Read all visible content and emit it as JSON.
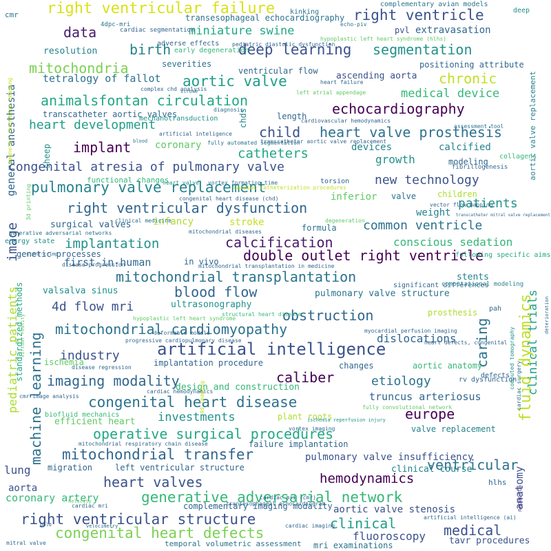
{
  "colors": {
    "background": "#ffffff",
    "palette": [
      "#440154",
      "#3b528b",
      "#21918c",
      "#5ec962",
      "#fde725"
    ]
  },
  "words": [
    {
      "text": "right ventricular failure",
      "color": "#d8e219"
    },
    {
      "text": "right ventricle",
      "color": "#3b528b"
    },
    {
      "text": "data",
      "color": "#481a6c"
    },
    {
      "text": "miniature swine",
      "color": "#22a884"
    },
    {
      "text": "extravasation",
      "color": "#31668e"
    },
    {
      "text": "birth",
      "color": "#26828e"
    },
    {
      "text": "deep learning",
      "color": "#3b528b"
    },
    {
      "text": "segmentation",
      "color": "#21918c"
    },
    {
      "text": "mitochondria",
      "color": "#7ad151"
    },
    {
      "text": "tetralogy of fallot",
      "color": "#2c728e"
    },
    {
      "text": "aortic valve",
      "color": "#1f9e89"
    },
    {
      "text": "chronic",
      "color": "#c2df23"
    },
    {
      "text": "medical device",
      "color": "#35b779"
    },
    {
      "text": "animalsfontan circulation",
      "color": "#22a884"
    },
    {
      "text": "echocardiography",
      "color": "#440154"
    },
    {
      "text": "heart development",
      "color": "#1f9e89"
    },
    {
      "text": "child",
      "color": "#3b528b"
    },
    {
      "text": "heart valve prosthesis",
      "color": "#2c728e"
    },
    {
      "text": "implant",
      "color": "#440154"
    },
    {
      "text": "catheters",
      "color": "#22a884"
    },
    {
      "text": "coronary",
      "color": "#5ec962"
    },
    {
      "text": "devices",
      "color": "#26828e"
    },
    {
      "text": "calcified",
      "color": "#26828e"
    },
    {
      "text": "congenital atresia of pulmonary valve",
      "color": "#3b528b"
    },
    {
      "text": "growth",
      "color": "#21918c"
    },
    {
      "text": "new technology",
      "color": "#3b528b"
    },
    {
      "text": "pulmonary valve replacement",
      "color": "#26828e"
    },
    {
      "text": "patients",
      "color": "#21918c"
    },
    {
      "text": "right ventricular dysfunction",
      "color": "#31668e"
    },
    {
      "text": "infancy",
      "color": "#addc30"
    },
    {
      "text": "stroke",
      "color": "#c2df23"
    },
    {
      "text": "weight",
      "color": "#26828e"
    },
    {
      "text": "common ventricle",
      "color": "#2c728e"
    },
    {
      "text": "implantation",
      "color": "#21918c"
    },
    {
      "text": "calcification",
      "color": "#481a6c"
    },
    {
      "text": "conscious sedation",
      "color": "#35b779"
    },
    {
      "text": "double outlet right ventricle",
      "color": "#440154"
    },
    {
      "text": "first-in-human",
      "color": "#31668e"
    },
    {
      "text": "mitochondrial transplantation",
      "color": "#2c728e"
    },
    {
      "text": "blood flow",
      "color": "#31668e"
    },
    {
      "text": "4d flow mri",
      "color": "#3b528b"
    },
    {
      "text": "obstruction",
      "color": "#31668e"
    },
    {
      "text": "mitochondrial cardiomyopathy",
      "color": "#2c728e"
    },
    {
      "text": "artificial intelligence",
      "color": "#3b528b"
    },
    {
      "text": "imaging modality",
      "color": "#31668e"
    },
    {
      "text": "caliber",
      "color": "#440154"
    },
    {
      "text": "etiology",
      "color": "#2c728e"
    },
    {
      "text": "congenital heart disease",
      "color": "#2c728e"
    },
    {
      "text": "operative surgical procedures",
      "color": "#22a884"
    },
    {
      "text": "mitochondrial transfer",
      "color": "#31668e"
    },
    {
      "text": "ventricular",
      "color": "#2c728e"
    },
    {
      "text": "heart valves",
      "color": "#3b528b"
    },
    {
      "text": "hemodynamics",
      "color": "#440154"
    },
    {
      "text": "generative adversarial network",
      "color": "#35b779"
    },
    {
      "text": "right ventricular structure",
      "color": "#3b528b"
    },
    {
      "text": "congenital heart defects",
      "color": "#7ad151"
    },
    {
      "text": "clinical",
      "color": "#1f9e89"
    },
    {
      "text": "medical",
      "color": "#3b528b"
    },
    {
      "text": "fluoroscopy",
      "color": "#3b528b"
    },
    {
      "text": "aortic valve stenosis",
      "color": "#3b528b"
    },
    {
      "text": "pulmonary valve insufficiency",
      "color": "#3b528b"
    },
    {
      "text": "europe",
      "color": "#440154"
    },
    {
      "text": "truncus arteriosus",
      "color": "#31668e"
    },
    {
      "text": "investments",
      "color": "#21918c"
    },
    {
      "text": "industry",
      "color": "#3b528b"
    },
    {
      "text": "machine learning",
      "color": "#2c728e",
      "vertical": true
    },
    {
      "text": "image",
      "color": "#3b528b",
      "vertical": true
    },
    {
      "text": "caring",
      "color": "#2c728e",
      "vertical": true
    },
    {
      "text": "fluid dynamics",
      "color": "#bddf26",
      "vertical": true
    },
    {
      "text": "clinical trials",
      "color": "#1f9e89",
      "vertical": true
    },
    {
      "text": "pediatric patients",
      "color": "#addc30",
      "vertical": true
    },
    {
      "text": "general anesthesia",
      "color": "#31668e",
      "vertical": true
    },
    {
      "text": "anatomy",
      "color": "#3b528b",
      "vertical": true
    },
    {
      "text": "aortic valve replacement",
      "color": "#26828e",
      "vertical": true
    },
    {
      "text": "sheep",
      "color": "#21918c",
      "vertical": true
    },
    {
      "text": "chds",
      "color": "#26828e",
      "vertical": true
    },
    {
      "text": "standardized methods",
      "color": "#22a884",
      "vertical": true
    },
    {
      "text": "magnetic resonance imaging",
      "color": "#c2df23",
      "vertical": true
    },
    {
      "text": "cardiac surgery",
      "color": "#2c728e",
      "vertical": true
    },
    {
      "text": "computed tomography",
      "color": "#21918c",
      "vertical": true
    },
    {
      "text": "neoaorta",
      "color": "#482878",
      "vertical": true
    },
    {
      "text": "transesophageal echocardiography",
      "color": "#2c728e"
    },
    {
      "text": "complementary avian models",
      "color": "#2c728e"
    },
    {
      "text": "resolution",
      "color": "#26828e"
    },
    {
      "text": "positioning attribute",
      "color": "#31668e"
    },
    {
      "text": "ascending aorta",
      "color": "#3b528b"
    },
    {
      "text": "ventricular flow",
      "color": "#31668e"
    },
    {
      "text": "severities",
      "color": "#2c728e"
    },
    {
      "text": "adverse effects",
      "color": "#31668e"
    },
    {
      "text": "early degeneration",
      "color": "#35b779"
    },
    {
      "text": "transcatheter aortic valves",
      "color": "#31668e"
    },
    {
      "text": "length",
      "color": "#31668e"
    },
    {
      "text": "mechanotransduction",
      "color": "#21918c"
    },
    {
      "text": "functional changes",
      "color": "#35b779"
    },
    {
      "text": "modeling",
      "color": "#31668e"
    },
    {
      "text": "inferior",
      "color": "#5ec962"
    },
    {
      "text": "valve",
      "color": "#2c728e"
    },
    {
      "text": "children",
      "color": "#addc30"
    },
    {
      "text": "surgical valves",
      "color": "#31668e"
    },
    {
      "text": "energy state",
      "color": "#21918c"
    },
    {
      "text": "genetic processes",
      "color": "#31668e"
    },
    {
      "text": "in vivo",
      "color": "#31668e"
    },
    {
      "text": "formula",
      "color": "#2c728e"
    },
    {
      "text": "stents",
      "color": "#26828e"
    },
    {
      "text": "prosthesis",
      "color": "#addc30"
    },
    {
      "text": "valsalva sinus",
      "color": "#21918c"
    },
    {
      "text": "ultrasonography",
      "color": "#21918c"
    },
    {
      "text": "pulmonary valve structure",
      "color": "#2c728e"
    },
    {
      "text": "dislocations",
      "color": "#31668e"
    },
    {
      "text": "ischemia",
      "color": "#5ec962"
    },
    {
      "text": "implantation procedure",
      "color": "#31668e"
    },
    {
      "text": "changes",
      "color": "#31668e"
    },
    {
      "text": "aortic anatomy",
      "color": "#35b779"
    },
    {
      "text": "design and construction",
      "color": "#35b779"
    },
    {
      "text": "efficient heart",
      "color": "#5ec962"
    },
    {
      "text": "plant roots",
      "color": "#addc30"
    },
    {
      "text": "valve replacement",
      "color": "#26828e"
    },
    {
      "text": "lung",
      "color": "#3b528b"
    },
    {
      "text": "migration",
      "color": "#31668e"
    },
    {
      "text": "left ventricular structure",
      "color": "#31668e"
    },
    {
      "text": "failure implantation",
      "color": "#31668e"
    },
    {
      "text": "clinical course",
      "color": "#26828e"
    },
    {
      "text": "aorta",
      "color": "#3b528b"
    },
    {
      "text": "coronary artery",
      "color": "#35b779"
    },
    {
      "text": "complementary imaging modality",
      "color": "#31668e"
    },
    {
      "text": "mri examinations",
      "color": "#2c728e"
    },
    {
      "text": "temporal volumetric assessment",
      "color": "#2c728e"
    },
    {
      "text": "tavr procedures",
      "color": "#3b528b"
    },
    {
      "text": "hlhs",
      "color": "#31668e"
    },
    {
      "text": "pah",
      "color": "#31668e"
    },
    {
      "text": "defects",
      "color": "#31668e"
    },
    {
      "text": "rv dysfunction",
      "color": "#31668e"
    },
    {
      "text": "kinking",
      "color": "#2c728e"
    },
    {
      "text": "deep",
      "color": "#21918c"
    },
    {
      "text": "cmr",
      "color": "#2c728e"
    },
    {
      "text": "pvl",
      "color": "#3b528b"
    },
    {
      "text": "torsion",
      "color": "#31668e"
    },
    {
      "text": "biofluid mechanics",
      "color": "#35b779"
    },
    {
      "text": "significant differences",
      "color": "#31668e"
    },
    {
      "text": "computational modeling",
      "color": "#26828e"
    },
    {
      "text": "following specific aims",
      "color": "#22a884"
    },
    {
      "text": "collagens",
      "color": "#35b779"
    },
    {
      "text": "fibrillogenesis",
      "color": "#31668e"
    },
    {
      "text": "4dpc-mri",
      "color": "#2c728e"
    },
    {
      "text": "echo-piv",
      "color": "#2c728e"
    },
    {
      "text": "cardiac segmentation",
      "color": "#31668e"
    },
    {
      "text": "pediatric diastolic dysfunction",
      "color": "#31668e"
    },
    {
      "text": "hypoplastic left heart syndrome (hlhs)",
      "color": "#5ec962"
    },
    {
      "text": "heart failure",
      "color": "#31668e"
    },
    {
      "text": "left atrial appendage",
      "color": "#5ec962"
    },
    {
      "text": "complex chd analysis",
      "color": "#31668e"
    },
    {
      "text": "stroke",
      "color": "#2c728e"
    },
    {
      "text": "diagnosis",
      "color": "#2c728e"
    },
    {
      "text": "cardiovascular hemodynamics",
      "color": "#31668e"
    },
    {
      "text": "artificial inteligence",
      "color": "#31668e"
    },
    {
      "text": "transcatheter aortic valve replacement",
      "color": "#31668e"
    },
    {
      "text": "assessment tool",
      "color": "#2c728e"
    },
    {
      "text": "fully automated segmentation",
      "color": "#2c728e"
    },
    {
      "text": "blood",
      "color": "#2c728e"
    },
    {
      "text": "heart valve",
      "color": "#21918c"
    },
    {
      "text": "vortex formation time",
      "color": "#2c728e"
    },
    {
      "text": "cardiac catheterization procedures",
      "color": "#c2df23"
    },
    {
      "text": "congenital heart disease (chd)",
      "color": "#31668e"
    },
    {
      "text": "vector flow mapping",
      "color": "#31668e"
    },
    {
      "text": "degeneration",
      "color": "#5ec962"
    },
    {
      "text": "transcatheter mitral valve replacement",
      "color": "#31668e"
    },
    {
      "text": "clinical medicine",
      "color": "#2c728e"
    },
    {
      "text": "mitochondrial diseases",
      "color": "#31668e"
    },
    {
      "text": "generative adversarial networks",
      "color": "#2c728e"
    },
    {
      "text": "mitochondrial transplantation in medicine",
      "color": "#31668e"
    },
    {
      "text": "stent-crimp",
      "color": "#31668e"
    },
    {
      "text": "disease progression",
      "color": "#31668e"
    },
    {
      "text": "hypoplastic left heart syndrome",
      "color": "#5ec962"
    },
    {
      "text": "structural heart disease",
      "color": "#35b779"
    },
    {
      "text": "deformable models",
      "color": "#31668e"
    },
    {
      "text": "progressive cardiopulmonary disease",
      "color": "#31668e"
    },
    {
      "text": "myocardial perfusion imaging",
      "color": "#31668e"
    },
    {
      "text": "heart defects, congenital",
      "color": "#31668e"
    },
    {
      "text": "disease regression",
      "color": "#31668e"
    },
    {
      "text": "cardiac hemodynamics",
      "color": "#31668e"
    },
    {
      "text": "cmr image analysis",
      "color": "#31668e"
    },
    {
      "text": "fully convolutional network",
      "color": "#5ec962"
    },
    {
      "text": "ischemia reperfusion injury",
      "color": "#21918c"
    },
    {
      "text": "vortex imaging",
      "color": "#31668e"
    },
    {
      "text": "mitochondrial respiratory chain disease",
      "color": "#31668e"
    },
    {
      "text": "transesophageal echocardiogram",
      "color": "#31668e"
    },
    {
      "text": "helicity",
      "color": "#5ec962"
    },
    {
      "text": "cardiac mri",
      "color": "#31668e"
    },
    {
      "text": "cardiac mri (cmr)",
      "color": "#31668e"
    },
    {
      "text": "cardiac imaging",
      "color": "#31668e"
    },
    {
      "text": "artificial intelligence (ai)",
      "color": "#31668e"
    },
    {
      "text": "gold",
      "color": "#31668e"
    },
    {
      "text": "velocimetry",
      "color": "#31668e"
    },
    {
      "text": "mitral valve",
      "color": "#31668e"
    },
    {
      "text": "3d printing",
      "color": "#5ec962",
      "vertical": true
    },
    {
      "text": "virtual reality",
      "color": "#5ec962",
      "vertical": true
    },
    {
      "text": "deterioration",
      "color": "#31668e",
      "vertical": true
    },
    {
      "text": "4d imaging",
      "color": "#c2df23",
      "vertical": true
    }
  ]
}
